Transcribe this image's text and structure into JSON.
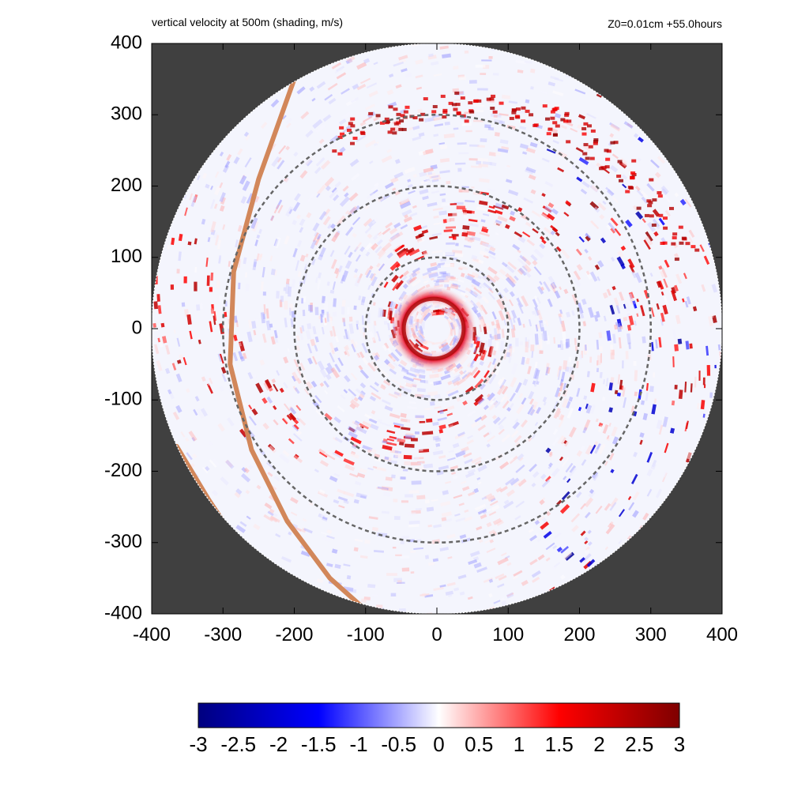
{
  "chart_data": {
    "type": "heatmap",
    "title": "vertical velocity at 500m (shading, m/s)",
    "subtitle": "Z0=0.01cm  +55.0hours",
    "xlabel": "",
    "ylabel": "",
    "xlim": [
      -400,
      400
    ],
    "ylim": [
      -400,
      400
    ],
    "x_ticks": [
      -400,
      -300,
      -200,
      -100,
      0,
      100,
      200,
      300,
      400
    ],
    "y_ticks": [
      -400,
      -300,
      -200,
      -100,
      0,
      100,
      200,
      300,
      400
    ],
    "domain_radius": 400,
    "range_rings": [
      100,
      200,
      300
    ],
    "background_color": "#404040",
    "colorbar": {
      "min": -3,
      "max": 3,
      "ticks": [
        "-3",
        "-2.5",
        "-2",
        "-1.5",
        "-1",
        "-0.5",
        "0",
        "0.5",
        "1",
        "1.5",
        "2",
        "2.5",
        "3"
      ],
      "colors": [
        "#00007f",
        "#0000ff",
        "#ffffff",
        "#ff0000",
        "#7f0000"
      ]
    },
    "features": {
      "eyewall_ring_radius": 40,
      "eyewall_max_value": 2.5,
      "front_line_color": "#d2875a",
      "front_lines": [
        [
          [
            -200,
            350
          ],
          [
            -250,
            210
          ],
          [
            -285,
            80
          ],
          [
            -290,
            -50
          ],
          [
            -260,
            -170
          ],
          [
            -210,
            -270
          ],
          [
            -150,
            -350
          ],
          [
            -105,
            -390
          ]
        ],
        [
          [
            -365,
            -165
          ],
          [
            -320,
            -240
          ],
          [
            -280,
            -300
          ],
          [
            -250,
            -330
          ]
        ]
      ]
    }
  }
}
